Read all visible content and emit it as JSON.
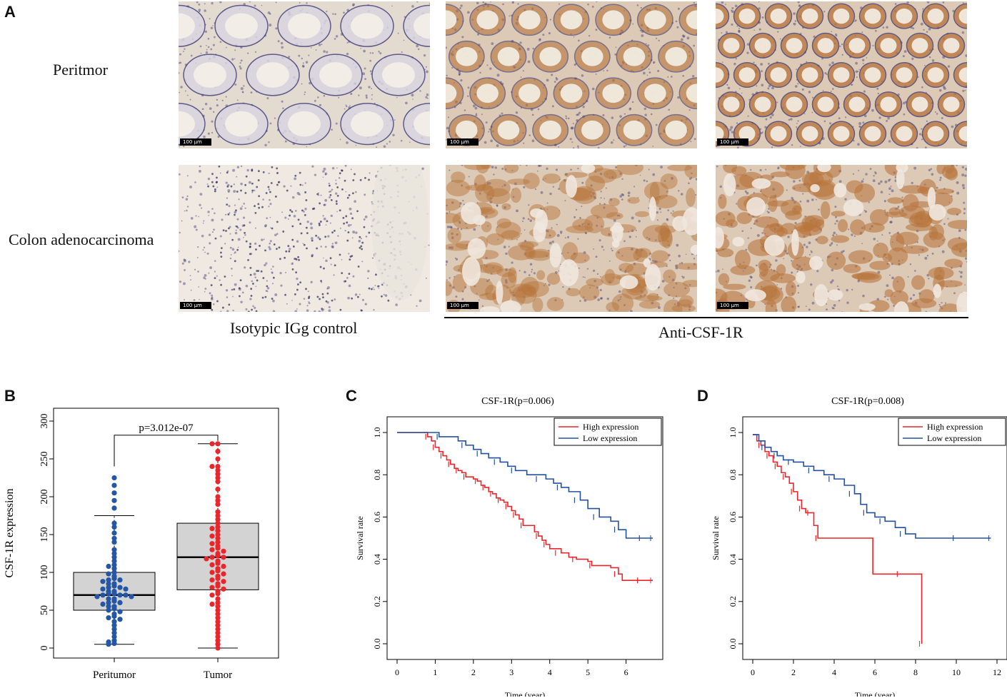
{
  "panel_a": {
    "letter": "A",
    "row_labels": [
      "Peritmor",
      "Colon adenocarcinoma"
    ],
    "col_captions": [
      "Isotypic IGg control",
      "Anti-CSF-1R"
    ],
    "scale_bar": "100 μm",
    "colors": {
      "stain_bg": "#efe9e2",
      "hematoxylin": "#3d3a78",
      "dab_brown": "#b8763e"
    }
  },
  "chart_data": [
    {
      "panel": "B",
      "type": "boxplot",
      "title": "p=3.012e-07",
      "xlabel": "",
      "ylabel": "CSF-1R expression",
      "ylim": [
        0,
        300
      ],
      "yticks": [
        0,
        50,
        100,
        150,
        200,
        250,
        300
      ],
      "categories": [
        "Peritumor",
        "Tumor"
      ],
      "boxes": [
        {
          "name": "Peritumor",
          "min": 5,
          "q1": 50,
          "median": 70,
          "q3": 100,
          "max": 175,
          "color": "#2456a6",
          "points": [
            225,
            215,
            205,
            195,
            185,
            165,
            160,
            152,
            145,
            140,
            130,
            125,
            120,
            115,
            110,
            108,
            105,
            100,
            98,
            95,
            92,
            90,
            90,
            88,
            85,
            85,
            82,
            80,
            80,
            78,
            78,
            75,
            75,
            72,
            72,
            70,
            70,
            70,
            68,
            68,
            65,
            65,
            62,
            60,
            60,
            58,
            55,
            55,
            52,
            50,
            48,
            45,
            42,
            40,
            38,
            35,
            30,
            25,
            20,
            15,
            10,
            8,
            6,
            5
          ]
        },
        {
          "name": "Tumor",
          "min": 0,
          "q1": 77,
          "median": 120,
          "q3": 165,
          "max": 270,
          "color": "#e8262b",
          "points": [
            270,
            270,
            260,
            250,
            240,
            240,
            235,
            230,
            225,
            220,
            210,
            200,
            195,
            190,
            180,
            175,
            170,
            165,
            160,
            158,
            155,
            150,
            148,
            145,
            140,
            138,
            135,
            132,
            130,
            128,
            125,
            122,
            120,
            120,
            118,
            115,
            112,
            110,
            108,
            105,
            102,
            100,
            98,
            95,
            92,
            90,
            88,
            85,
            82,
            80,
            78,
            75,
            72,
            70,
            65,
            60,
            58,
            55,
            50,
            45,
            40,
            35,
            30,
            25,
            20,
            15,
            10,
            5,
            0
          ]
        }
      ]
    },
    {
      "panel": "C",
      "type": "line",
      "title": "CSF-1R(p=0.006)",
      "xlabel": "Time (year)",
      "ylabel": "Survival rate",
      "xlim": [
        0,
        6.7
      ],
      "ylim": [
        0,
        1
      ],
      "xticks": [
        0,
        1,
        2,
        3,
        4,
        5,
        6
      ],
      "yticks": [
        0.0,
        0.2,
        0.4,
        0.6,
        0.8,
        1.0
      ],
      "legend_position": "top-right",
      "series": [
        {
          "name": "High expression",
          "color": "#e8262b",
          "x": [
            0,
            0.7,
            0.8,
            0.9,
            1.0,
            1.1,
            1.2,
            1.3,
            1.4,
            1.5,
            1.6,
            1.7,
            1.8,
            2.0,
            2.1,
            2.2,
            2.3,
            2.4,
            2.5,
            2.6,
            2.7,
            2.8,
            2.9,
            3.0,
            3.1,
            3.2,
            3.3,
            3.6,
            3.7,
            3.8,
            3.9,
            4.0,
            4.3,
            4.5,
            4.7,
            5.0,
            5.1,
            5.6,
            5.8,
            5.9,
            6.7
          ],
          "y": [
            1.0,
            1.0,
            0.98,
            0.96,
            0.93,
            0.91,
            0.89,
            0.87,
            0.85,
            0.83,
            0.82,
            0.81,
            0.79,
            0.78,
            0.77,
            0.75,
            0.74,
            0.72,
            0.71,
            0.69,
            0.68,
            0.67,
            0.65,
            0.63,
            0.61,
            0.59,
            0.56,
            0.53,
            0.51,
            0.49,
            0.47,
            0.45,
            0.43,
            0.41,
            0.4,
            0.39,
            0.37,
            0.36,
            0.33,
            0.3,
            0.3
          ]
        },
        {
          "name": "Low expression",
          "color": "#2450a2",
          "x": [
            0,
            1.0,
            1.1,
            1.6,
            1.8,
            2.0,
            2.2,
            2.4,
            2.7,
            2.9,
            3.1,
            3.4,
            3.9,
            4.1,
            4.3,
            4.5,
            4.8,
            5.0,
            5.3,
            5.6,
            5.8,
            6.0,
            6.7
          ],
          "y": [
            1.0,
            1.0,
            0.98,
            0.96,
            0.94,
            0.92,
            0.9,
            0.88,
            0.86,
            0.84,
            0.82,
            0.8,
            0.78,
            0.76,
            0.74,
            0.72,
            0.68,
            0.64,
            0.6,
            0.58,
            0.54,
            0.5,
            0.5
          ]
        }
      ]
    },
    {
      "panel": "D",
      "type": "line",
      "title": "CSF-1R(p=0.008)",
      "xlabel": "Time (year)",
      "ylabel": "Survival rate",
      "xlim": [
        0,
        12
      ],
      "ylim": [
        0,
        1
      ],
      "xticks": [
        0,
        2,
        4,
        6,
        8,
        10,
        12
      ],
      "yticks": [
        0.0,
        0.2,
        0.4,
        0.6,
        0.8,
        1.0
      ],
      "legend_position": "top-right",
      "series": [
        {
          "name": "High expression",
          "color": "#e8262b",
          "x": [
            0,
            0.2,
            0.4,
            0.6,
            0.8,
            1.0,
            1.2,
            1.4,
            1.6,
            1.8,
            2.0,
            2.2,
            2.4,
            2.6,
            2.8,
            3.0,
            3.2,
            5.9,
            8.3,
            8.3
          ],
          "y": [
            0.99,
            0.96,
            0.94,
            0.91,
            0.89,
            0.86,
            0.84,
            0.81,
            0.79,
            0.76,
            0.72,
            0.68,
            0.64,
            0.62,
            0.62,
            0.56,
            0.5,
            0.33,
            0.33,
            0.0
          ]
        },
        {
          "name": "Low expression",
          "color": "#2450a2",
          "x": [
            0,
            0.3,
            0.6,
            0.9,
            1.2,
            1.5,
            2.0,
            2.5,
            3.0,
            3.5,
            4.0,
            4.5,
            5.0,
            5.3,
            5.6,
            6.0,
            6.5,
            7.0,
            7.5,
            8.0,
            11.7
          ],
          "y": [
            0.99,
            0.96,
            0.93,
            0.91,
            0.89,
            0.87,
            0.86,
            0.84,
            0.82,
            0.8,
            0.78,
            0.75,
            0.71,
            0.66,
            0.62,
            0.6,
            0.58,
            0.55,
            0.52,
            0.5,
            0.5
          ]
        }
      ]
    }
  ]
}
